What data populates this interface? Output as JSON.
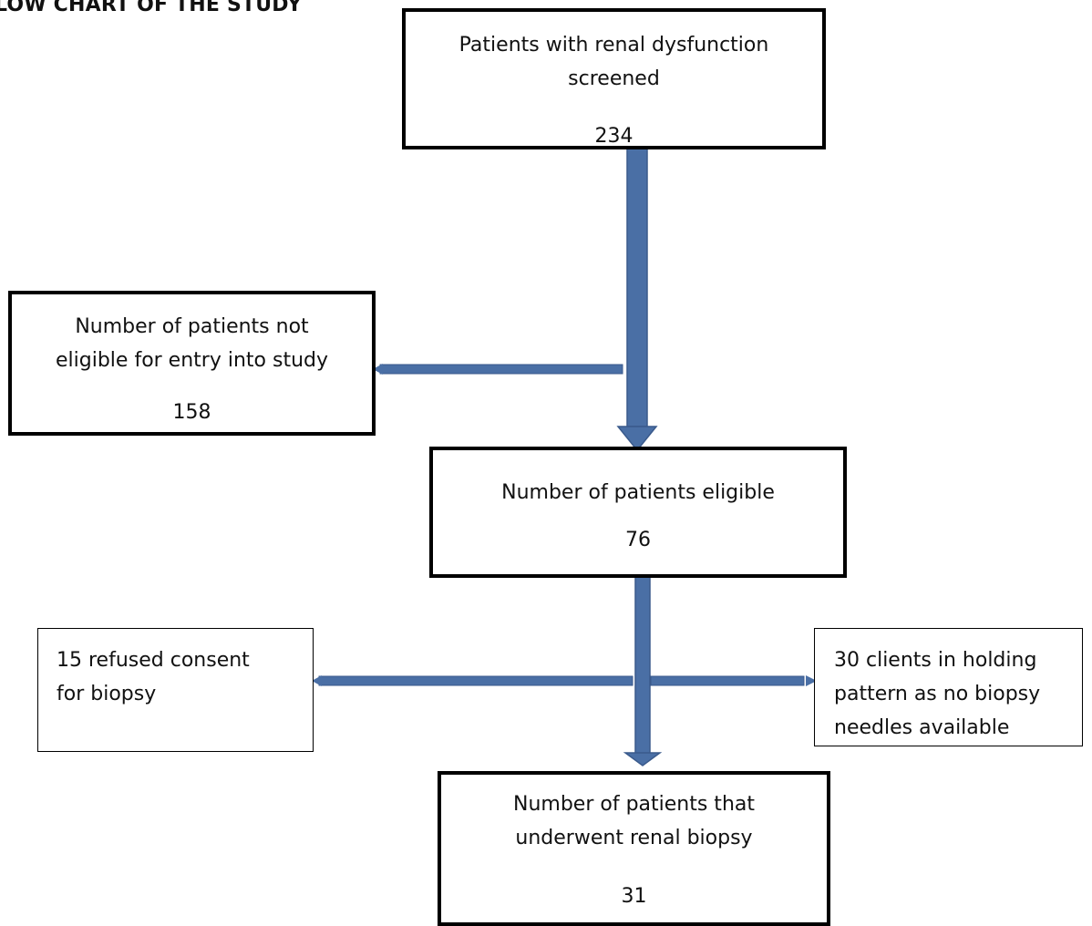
{
  "title": "LOW CHART OF THE STUDY",
  "nodes": {
    "screened": {
      "label_line1": "Patients with renal dysfunction",
      "label_line2": "screened",
      "count": "234"
    },
    "not_eligible": {
      "label_line1": "Number of patients not",
      "label_line2": "eligible for entry into study",
      "count": "158"
    },
    "eligible": {
      "label": "Number of patients eligible",
      "count": "76"
    },
    "refused": {
      "label_line1": "15 refused consent",
      "label_line2": "for biopsy"
    },
    "holding": {
      "label_line1": "30 clients in holding",
      "label_line2": "pattern as no biopsy",
      "label_line3": "needles available"
    },
    "biopsy": {
      "label_line1": "Number of patients that",
      "label_line2": "underwent renal biopsy",
      "count": "31"
    }
  },
  "colors": {
    "arrow_fill": "#4a6fa5",
    "arrow_edge": "#3a5a8c",
    "box_border": "#000000"
  }
}
